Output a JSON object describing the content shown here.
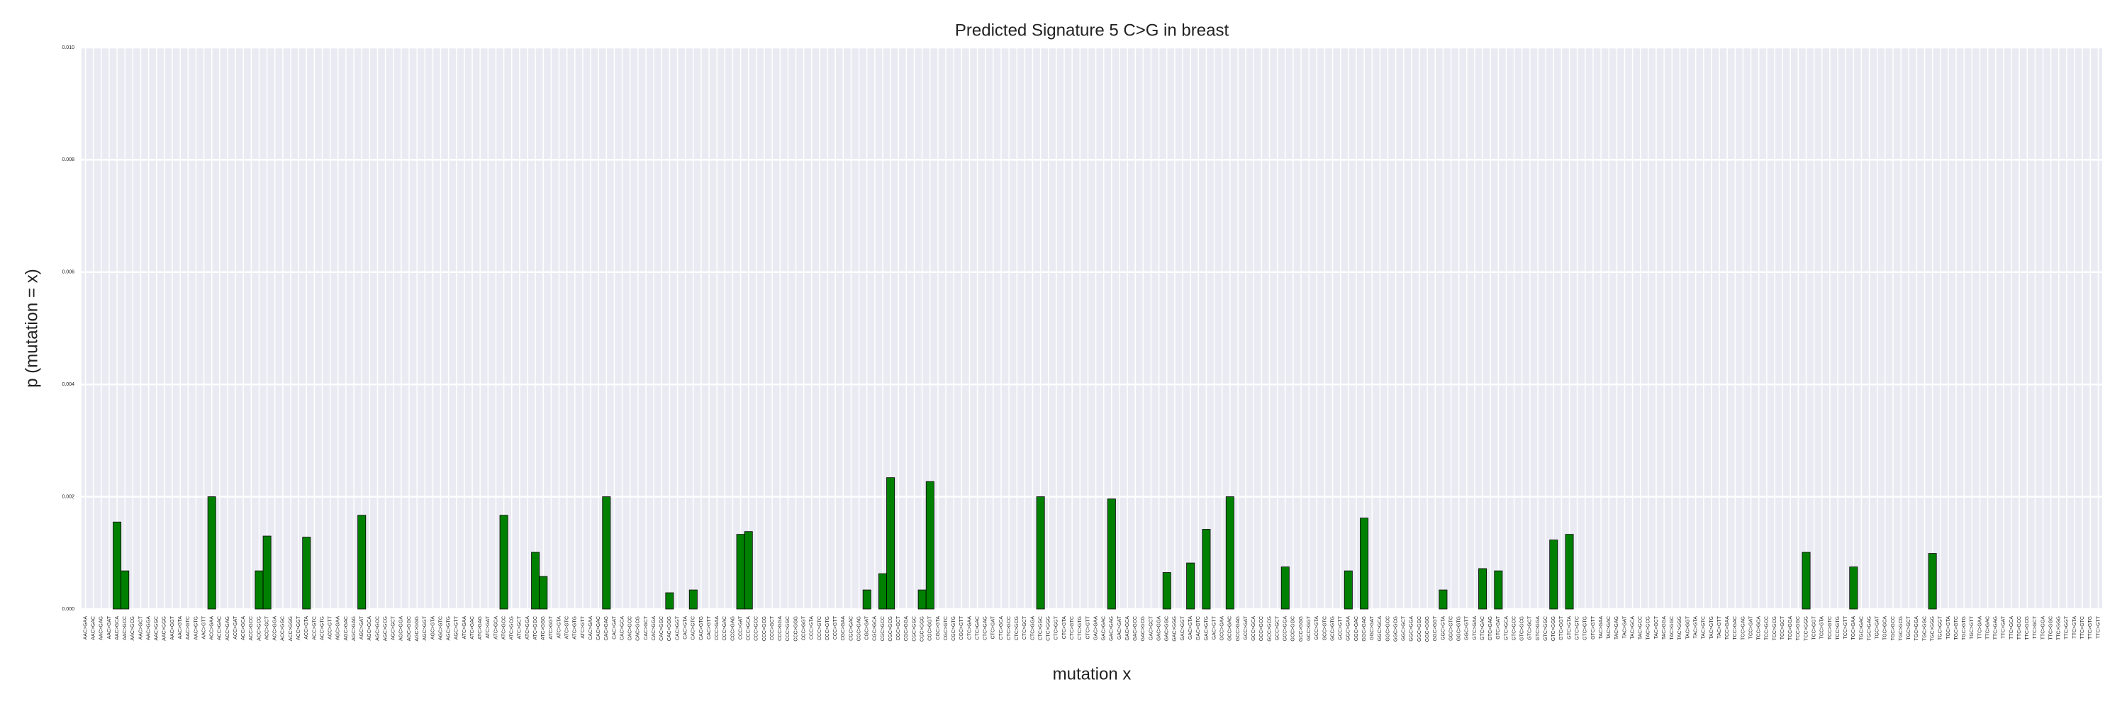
{
  "chart_data": {
    "type": "bar",
    "title": "Predicted Signature 5 C>G in breast",
    "xlabel": "mutation x",
    "ylabel": "p (mutation = x)",
    "categories": [
      "AAC>GAA",
      "AAC>GAC",
      "AAC>GAG",
      "AAC>GAT",
      "AAC>GCA",
      "AAC>GCC",
      "AAC>GCG",
      "AAC>GCT",
      "AAC>GGA",
      "AAC>GGC",
      "AAC>GGG",
      "AAC>GGT",
      "AAC>GTA",
      "AAC>GTC",
      "AAC>GTG",
      "AAC>GTT",
      "ACC>GAA",
      "ACC>GAC",
      "ACC>GAG",
      "ACC>GAT",
      "ACC>GCA",
      "ACC>GCC",
      "ACC>GCG",
      "ACC>GCT",
      "ACC>GGA",
      "ACC>GGC",
      "ACC>GGG",
      "ACC>GGT",
      "ACC>GTA",
      "ACC>GTC",
      "ACC>GTG",
      "ACC>GTT",
      "AGC>GAA",
      "AGC>GAC",
      "AGC>GAG",
      "AGC>GAT",
      "AGC>GCA",
      "AGC>GCC",
      "AGC>GCG",
      "AGC>GCT",
      "AGC>GGA",
      "AGC>GGC",
      "AGC>GGG",
      "AGC>GGT",
      "AGC>GTA",
      "AGC>GTC",
      "AGC>GTG",
      "AGC>GTT",
      "ATC>GAA",
      "ATC>GAC",
      "ATC>GAG",
      "ATC>GAT",
      "ATC>GCA",
      "ATC>GCC",
      "ATC>GCG",
      "ATC>GCT",
      "ATC>GGA",
      "ATC>GGC",
      "ATC>GGG",
      "ATC>GGT",
      "ATC>GTA",
      "ATC>GTC",
      "ATC>GTG",
      "ATC>GTT",
      "CAC>GAA",
      "CAC>GAC",
      "CAC>GAG",
      "CAC>GAT",
      "CAC>GCA",
      "CAC>GCC",
      "CAC>GCG",
      "CAC>GCT",
      "CAC>GGA",
      "CAC>GGC",
      "CAC>GGG",
      "CAC>GGT",
      "CAC>GTA",
      "CAC>GTC",
      "CAC>GTG",
      "CAC>GTT",
      "CCC>GAA",
      "CCC>GAC",
      "CCC>GAG",
      "CCC>GAT",
      "CCC>GCA",
      "CCC>GCC",
      "CCC>GCG",
      "CCC>GCT",
      "CCC>GGA",
      "CCC>GGC",
      "CCC>GGG",
      "CCC>GGT",
      "CCC>GTA",
      "CCC>GTC",
      "CCC>GTG",
      "CCC>GTT",
      "CGC>GAA",
      "CGC>GAC",
      "CGC>GAG",
      "CGC>GAT",
      "CGC>GCA",
      "CGC>GCC",
      "CGC>GCG",
      "CGC>GCT",
      "CGC>GGA",
      "CGC>GGC",
      "CGC>GGG",
      "CGC>GGT",
      "CGC>GTA",
      "CGC>GTC",
      "CGC>GTG",
      "CGC>GTT",
      "CTC>GAA",
      "CTC>GAC",
      "CTC>GAG",
      "CTC>GAT",
      "CTC>GCA",
      "CTC>GCC",
      "CTC>GCG",
      "CTC>GCT",
      "CTC>GGA",
      "CTC>GGC",
      "CTC>GGG",
      "CTC>GGT",
      "CTC>GTA",
      "CTC>GTC",
      "CTC>GTG",
      "CTC>GTT",
      "GAC>GAA",
      "GAC>GAC",
      "GAC>GAG",
      "GAC>GAT",
      "GAC>GCA",
      "GAC>GCC",
      "GAC>GCG",
      "GAC>GCT",
      "GAC>GGA",
      "GAC>GGC",
      "GAC>GGG",
      "GAC>GGT",
      "GAC>GTA",
      "GAC>GTC",
      "GAC>GTG",
      "GAC>GTT",
      "GCC>GAA",
      "GCC>GAC",
      "GCC>GAG",
      "GCC>GAT",
      "GCC>GCA",
      "GCC>GCC",
      "GCC>GCG",
      "GCC>GCT",
      "GCC>GGA",
      "GCC>GGC",
      "GCC>GGG",
      "GCC>GGT",
      "GCC>GTA",
      "GCC>GTC",
      "GCC>GTG",
      "GCC>GTT",
      "GGC>GAA",
      "GGC>GAC",
      "GGC>GAG",
      "GGC>GAT",
      "GGC>GCA",
      "GGC>GCC",
      "GGC>GCG",
      "GGC>GCT",
      "GGC>GGA",
      "GGC>GGC",
      "GGC>GGG",
      "GGC>GGT",
      "GGC>GTA",
      "GGC>GTC",
      "GGC>GTG",
      "GGC>GTT",
      "GTC>GAA",
      "GTC>GAC",
      "GTC>GAG",
      "GTC>GAT",
      "GTC>GCA",
      "GTC>GCC",
      "GTC>GCG",
      "GTC>GCT",
      "GTC>GGA",
      "GTC>GGC",
      "GTC>GGG",
      "GTC>GGT",
      "GTC>GTA",
      "GTC>GTC",
      "GTC>GTG",
      "GTC>GTT",
      "TAC>GAA",
      "TAC>GAC",
      "TAC>GAG",
      "TAC>GAT",
      "TAC>GCA",
      "TAC>GCC",
      "TAC>GCG",
      "TAC>GCT",
      "TAC>GGA",
      "TAC>GGC",
      "TAC>GGG",
      "TAC>GGT",
      "TAC>GTA",
      "TAC>GTC",
      "TAC>GTG",
      "TAC>GTT",
      "TCC>GAA",
      "TCC>GAC",
      "TCC>GAG",
      "TCC>GAT",
      "TCC>GCA",
      "TCC>GCC",
      "TCC>GCG",
      "TCC>GCT",
      "TCC>GGA",
      "TCC>GGC",
      "TCC>GGG",
      "TCC>GGT",
      "TCC>GTA",
      "TCC>GTC",
      "TCC>GTG",
      "TCC>GTT",
      "TGC>GAA",
      "TGC>GAC",
      "TGC>GAG",
      "TGC>GAT",
      "TGC>GCA",
      "TGC>GCC",
      "TGC>GCG",
      "TGC>GCT",
      "TGC>GGA",
      "TGC>GGC",
      "TGC>GGG",
      "TGC>GGT",
      "TGC>GTA",
      "TGC>GTC",
      "TGC>GTG",
      "TGC>GTT",
      "TTC>GAA",
      "TTC>GAC",
      "TTC>GAG",
      "TTC>GAT",
      "TTC>GCA",
      "TTC>GCC",
      "TTC>GCG",
      "TTC>GCT",
      "TTC>GGA",
      "TTC>GGC",
      "TTC>GGG",
      "TTC>GGT",
      "TTC>GTA",
      "TTC>GTC",
      "TTC>GTG",
      "TTC>GTT"
    ],
    "values": [
      0,
      0,
      0,
      0,
      0.00155,
      0.00068,
      0,
      0,
      0,
      0,
      0,
      0,
      0,
      0,
      0,
      0,
      0.002,
      0,
      0,
      0,
      0,
      0,
      0.00068,
      0.0013,
      0,
      0,
      0,
      0,
      0.00128,
      0,
      0,
      0,
      0,
      0,
      0,
      0.00167,
      0,
      0,
      0,
      0,
      0,
      0,
      0,
      0,
      0,
      0,
      0,
      0,
      0,
      0,
      0,
      0,
      0,
      0.00167,
      0,
      0,
      0,
      0.00101,
      0.00058,
      0,
      0,
      0,
      0,
      0,
      0,
      0,
      0.002,
      0,
      0,
      0,
      0,
      0,
      0,
      0,
      0.00029,
      0,
      0,
      0.00034,
      0,
      0,
      0,
      0,
      0,
      0.00133,
      0.00138,
      0,
      0,
      0,
      0,
      0,
      0,
      0,
      0,
      0,
      0,
      0,
      0,
      0,
      0,
      0.00034,
      0,
      0.00063,
      0.00234,
      0,
      0,
      0,
      0.00034,
      0.00227,
      0,
      0,
      0,
      0,
      0,
      0,
      0,
      0,
      0,
      0,
      0,
      0,
      0,
      0.002,
      0,
      0,
      0,
      0,
      0,
      0,
      0,
      0,
      0.00196,
      0,
      0,
      0,
      0,
      0,
      0,
      0.00065,
      0,
      0,
      0.00082,
      0,
      0.00142,
      0,
      0,
      0.002,
      0,
      0,
      0,
      0,
      0,
      0,
      0.00075,
      0,
      0,
      0,
      0,
      0,
      0,
      0,
      0.00068,
      0,
      0.00162,
      0,
      0,
      0,
      0,
      0,
      0,
      0,
      0,
      0,
      0.00034,
      0,
      0,
      0,
      0,
      0.00072,
      0,
      0.00068,
      0,
      0,
      0,
      0,
      0,
      0,
      0.00123,
      0,
      0.00133,
      0,
      0,
      0,
      0,
      0,
      0,
      0,
      0,
      0,
      0,
      0,
      0,
      0,
      0,
      0,
      0,
      0,
      0,
      0,
      0,
      0,
      0,
      0,
      0,
      0,
      0,
      0,
      0,
      0,
      0.00101,
      0,
      0,
      0,
      0,
      0,
      0.00075,
      0,
      0,
      0,
      0,
      0,
      0,
      0,
      0,
      0,
      0.00099,
      0,
      0,
      0,
      0,
      0,
      0,
      0,
      0,
      0,
      0,
      0,
      0,
      0,
      0,
      0,
      0,
      0,
      0,
      0,
      0,
      0
    ],
    "color": "#008000",
    "ylim": [
      0,
      0.01
    ],
    "yticks": [
      {
        "value": 0,
        "label": "0.000"
      },
      {
        "value": 0.002,
        "label": "0.002"
      },
      {
        "value": 0.004,
        "label": "0.004"
      },
      {
        "value": 0.006,
        "label": "0.006"
      },
      {
        "value": 0.008,
        "label": "0.008"
      },
      {
        "value": 0.01,
        "label": "0.010"
      }
    ],
    "grid": true
  }
}
